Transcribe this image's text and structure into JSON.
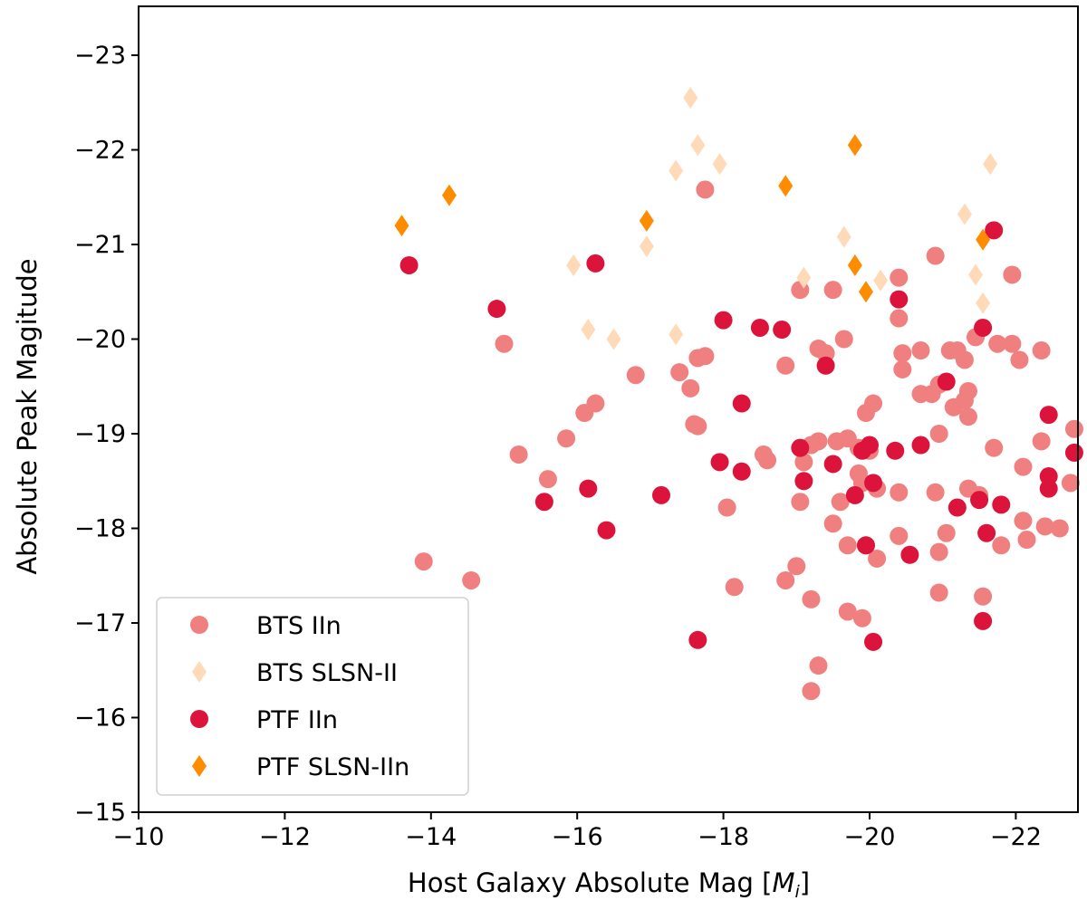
{
  "chart_data": {
    "type": "scatter",
    "title": "",
    "xlabel_prefix": "Host Galaxy Absolute Mag [",
    "xlabel_math": "M",
    "xlabel_sub": "i",
    "xlabel_suffix": "]",
    "ylabel": "Absolute Peak Magitude",
    "xlim": [
      -10,
      -22.85
    ],
    "ylim": [
      -15,
      -23.5
    ],
    "xticks": [
      -10,
      -12,
      -14,
      -16,
      -18,
      -20,
      -22
    ],
    "yticks": [
      -15,
      -16,
      -17,
      -18,
      -19,
      -20,
      -21,
      -22,
      -23
    ],
    "xtick_labels": [
      "−10",
      "−12",
      "−14",
      "−16",
      "−18",
      "−20",
      "−22"
    ],
    "ytick_labels": [
      "−15",
      "−16",
      "−17",
      "−18",
      "−19",
      "−20",
      "−21",
      "−22",
      "−23"
    ],
    "legend_position": "lower-left",
    "series": [
      {
        "name": "BTS IIn",
        "marker": "circle",
        "color": "#f08080",
        "points": [
          [
            -17.75,
            -21.58
          ],
          [
            -20.9,
            -20.88
          ],
          [
            -21.95,
            -20.68
          ],
          [
            -20.4,
            -20.65
          ],
          [
            -19.05,
            -20.52
          ],
          [
            -19.5,
            -20.52
          ],
          [
            -20.4,
            -20.22
          ],
          [
            -20.45,
            -19.85
          ],
          [
            -20.45,
            -19.68
          ],
          [
            -20.7,
            -19.88
          ],
          [
            -21.1,
            -19.88
          ],
          [
            -21.2,
            -19.88
          ],
          [
            -21.3,
            -19.78
          ],
          [
            -21.45,
            -20.02
          ],
          [
            -21.75,
            -19.95
          ],
          [
            -21.95,
            -19.95
          ],
          [
            -22.05,
            -19.78
          ],
          [
            -22.35,
            -19.88
          ],
          [
            -15,
            -19.95
          ],
          [
            -19.3,
            -19.9
          ],
          [
            -19.4,
            -19.85
          ],
          [
            -19.65,
            -20
          ],
          [
            -18.85,
            -19.72
          ],
          [
            -16.8,
            -19.62
          ],
          [
            -17.4,
            -19.65
          ],
          [
            -17.65,
            -19.8
          ],
          [
            -17.75,
            -19.82
          ],
          [
            -17.55,
            -19.48
          ],
          [
            -16.25,
            -19.32
          ],
          [
            -16.1,
            -19.22
          ],
          [
            -17.6,
            -19.1
          ],
          [
            -17.65,
            -19.08
          ],
          [
            -20.7,
            -19.42
          ],
          [
            -20.85,
            -19.42
          ],
          [
            -20.95,
            -19.52
          ],
          [
            -21.15,
            -19.28
          ],
          [
            -21.3,
            -19.35
          ],
          [
            -21.35,
            -19.18
          ],
          [
            -21.35,
            -19.45
          ],
          [
            -20.05,
            -19.32
          ],
          [
            -19.95,
            -19.22
          ],
          [
            -20.95,
            -19.0
          ],
          [
            -21.7,
            -18.85
          ],
          [
            -22.35,
            -18.92
          ],
          [
            -22.8,
            -19.05
          ],
          [
            -22.75,
            -18.48
          ],
          [
            -22.1,
            -18.65
          ],
          [
            -22.1,
            -18.08
          ],
          [
            -22.15,
            -17.88
          ],
          [
            -22.4,
            -18.02
          ],
          [
            -22.6,
            -18.0
          ],
          [
            -15.85,
            -18.95
          ],
          [
            -15.2,
            -18.78
          ],
          [
            -15.6,
            -18.52
          ],
          [
            -18.55,
            -18.78
          ],
          [
            -18.6,
            -18.72
          ],
          [
            -19.2,
            -18.88
          ],
          [
            -19.3,
            -18.92
          ],
          [
            -19.55,
            -18.92
          ],
          [
            -19.7,
            -18.95
          ],
          [
            -19.85,
            -18.85
          ],
          [
            -20.0,
            -18.82
          ],
          [
            -19.1,
            -18.7
          ],
          [
            -19.85,
            -18.58
          ],
          [
            -19.9,
            -18.48
          ],
          [
            -20.1,
            -18.42
          ],
          [
            -19.05,
            -18.28
          ],
          [
            -19.6,
            -18.28
          ],
          [
            -19.5,
            -18.05
          ],
          [
            -19.7,
            -17.82
          ],
          [
            -19.95,
            -17.82
          ],
          [
            -20.1,
            -17.68
          ],
          [
            -20.4,
            -18.38
          ],
          [
            -20.4,
            -17.92
          ],
          [
            -20.9,
            -18.38
          ],
          [
            -20.95,
            -17.75
          ],
          [
            -21.05,
            -17.95
          ],
          [
            -21.35,
            -18.42
          ],
          [
            -21.5,
            -18.35
          ],
          [
            -21.8,
            -17.82
          ],
          [
            -18.05,
            -18.22
          ],
          [
            -13.9,
            -17.65
          ],
          [
            -14.55,
            -17.45
          ],
          [
            -18.85,
            -17.45
          ],
          [
            -19.0,
            -17.6
          ],
          [
            -18.15,
            -17.38
          ],
          [
            -19.2,
            -17.25
          ],
          [
            -19.7,
            -17.12
          ],
          [
            -19.9,
            -17.05
          ],
          [
            -20.95,
            -17.32
          ],
          [
            -21.55,
            -17.28
          ],
          [
            -19.3,
            -16.55
          ],
          [
            -19.2,
            -16.28
          ]
        ]
      },
      {
        "name": "BTS SLSN-II",
        "marker": "diamond",
        "color": "#ffdab9",
        "points": [
          [
            -17.55,
            -22.55
          ],
          [
            -17.65,
            -22.05
          ],
          [
            -17.35,
            -21.78
          ],
          [
            -17.95,
            -21.85
          ],
          [
            -21.65,
            -21.85
          ],
          [
            -21.3,
            -21.32
          ],
          [
            -19.65,
            -21.08
          ],
          [
            -16.95,
            -20.98
          ],
          [
            -15.95,
            -20.78
          ],
          [
            -21.45,
            -20.68
          ],
          [
            -19.1,
            -20.65
          ],
          [
            -20.15,
            -20.62
          ],
          [
            -21.55,
            -20.38
          ],
          [
            -16.15,
            -20.1
          ],
          [
            -16.5,
            -20.0
          ],
          [
            -17.35,
            -20.05
          ]
        ]
      },
      {
        "name": "PTF IIn",
        "marker": "circle",
        "color": "#dc143c",
        "points": [
          [
            -21.7,
            -21.15
          ],
          [
            -13.7,
            -20.78
          ],
          [
            -16.25,
            -20.8
          ],
          [
            -14.9,
            -20.32
          ],
          [
            -20.4,
            -20.42
          ],
          [
            -18.0,
            -20.2
          ],
          [
            -18.5,
            -20.12
          ],
          [
            -18.8,
            -20.1
          ],
          [
            -21.55,
            -20.12
          ],
          [
            -19.4,
            -19.72
          ],
          [
            -21.05,
            -19.55
          ],
          [
            -18.25,
            -19.32
          ],
          [
            -22.45,
            -19.2
          ],
          [
            -19.05,
            -18.85
          ],
          [
            -19.9,
            -18.82
          ],
          [
            -20.0,
            -18.88
          ],
          [
            -20.35,
            -18.82
          ],
          [
            -20.7,
            -18.88
          ],
          [
            -22.8,
            -18.8
          ],
          [
            -17.95,
            -18.7
          ],
          [
            -18.25,
            -18.6
          ],
          [
            -19.1,
            -18.5
          ],
          [
            -19.5,
            -18.68
          ],
          [
            -20.05,
            -18.48
          ],
          [
            -22.45,
            -18.55
          ],
          [
            -22.45,
            -18.42
          ],
          [
            -16.15,
            -18.42
          ],
          [
            -17.15,
            -18.35
          ],
          [
            -15.55,
            -18.28
          ],
          [
            -19.8,
            -18.35
          ],
          [
            -21.2,
            -18.22
          ],
          [
            -21.5,
            -18.3
          ],
          [
            -21.8,
            -18.25
          ],
          [
            -16.4,
            -17.98
          ],
          [
            -21.6,
            -17.95
          ],
          [
            -19.95,
            -17.82
          ],
          [
            -20.55,
            -17.72
          ],
          [
            -21.55,
            -17.02
          ],
          [
            -17.65,
            -16.82
          ],
          [
            -20.05,
            -16.8
          ]
        ]
      },
      {
        "name": "PTF SLSN-IIn",
        "marker": "diamond",
        "color": "#ff8c00",
        "points": [
          [
            -19.8,
            -22.05
          ],
          [
            -14.25,
            -21.52
          ],
          [
            -18.85,
            -21.62
          ],
          [
            -13.6,
            -21.2
          ],
          [
            -16.95,
            -21.25
          ],
          [
            -21.55,
            -21.05
          ],
          [
            -19.8,
            -20.78
          ],
          [
            -19.95,
            -20.5
          ]
        ]
      }
    ]
  }
}
